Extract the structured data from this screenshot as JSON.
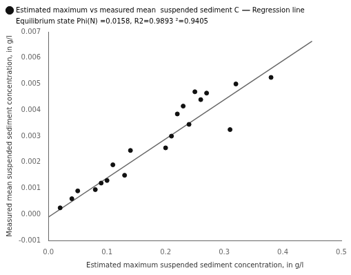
{
  "chart_data": {
    "type": "scatter",
    "xlabel": "Estimated maximum suspended sediment concentration, in g/l",
    "ylabel": "Measured mean suspended sediment concentration, in g/l",
    "series": [
      {
        "name": "Estimated maximum vs measured mean  suspended sediment C",
        "type": "scatter",
        "color": "#111111",
        "x": [
          0.02,
          0.04,
          0.05,
          0.08,
          0.09,
          0.1,
          0.11,
          0.13,
          0.14,
          0.2,
          0.21,
          0.22,
          0.23,
          0.24,
          0.25,
          0.26,
          0.27,
          0.31,
          0.32,
          0.38
        ],
        "values": [
          0.00025,
          0.0006,
          0.0009,
          0.00095,
          0.0012,
          0.0013,
          0.0019,
          0.0015,
          0.00245,
          0.00255,
          0.003,
          0.00385,
          0.00415,
          0.00345,
          0.0047,
          0.0044,
          0.00465,
          0.00325,
          0.005,
          0.00525
        ]
      },
      {
        "name": "Regression line",
        "type": "line",
        "color": "#666666",
        "x": [
          0.0,
          0.45
        ],
        "values": [
          -0.000105,
          0.006636
        ]
      }
    ],
    "annotations": [
      "Equilibrium state Phi(N) =0.0158, R2=0.9893 ²=0.9405"
    ],
    "xlim": [
      0.0,
      0.5
    ],
    "xticks": [
      {
        "value": 0.0,
        "label": "0.0"
      },
      0.1,
      0.2,
      0.3,
      0.4,
      0.5
    ],
    "ylim": [
      -0.001,
      0.007
    ],
    "yticks": [
      -0.001,
      {
        "value": 0.0,
        "label": "0.000"
      },
      0.001,
      0.002,
      0.003,
      0.004,
      0.005,
      0.006,
      0.007
    ],
    "grid": false,
    "legend": "upper left"
  }
}
